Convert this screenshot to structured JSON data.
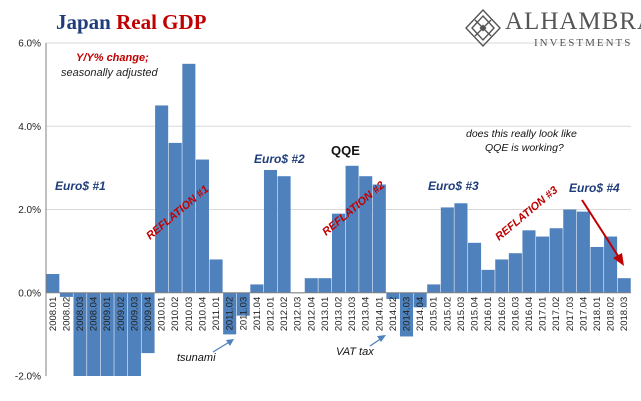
{
  "header": {
    "title_part1": "Japan",
    "title_part2": "Real GDP",
    "logo_name": "ALHAMBRA",
    "logo_sub": "INVESTMENTS"
  },
  "colors": {
    "bar": "#4f81bd",
    "bar_edge": "#3a6ea5",
    "annotation_red": "#c00000",
    "annotation_blue": "#1f3d7a",
    "title_blue": "#1f3d7a",
    "grid": "#d9d9d9"
  },
  "annotations": {
    "yy_change": "Y/Y% change;",
    "seasonally": "seasonally adjusted",
    "euro1": "Euro$ #1",
    "euro2": "Euro$ #2",
    "euro3": "Euro$ #3",
    "euro4": "Euro$ #4",
    "qqe": "QQE",
    "reflation1": "REFLATION #1",
    "reflation2": "REFLATION #2",
    "reflation3": "REFLATION #3",
    "question_line1": "does this really look like",
    "question_line2": "QQE is working?",
    "tsunami": "tsunami",
    "vat_tax": "VAT tax"
  },
  "chart_data": {
    "type": "bar",
    "title": "Japan Real GDP",
    "xlabel": "",
    "ylabel": "",
    "ylim": [
      -2.0,
      6.0
    ],
    "yticks": [
      "6.0%",
      "4.0%",
      "2.0%",
      "0.0%",
      "-2.0%"
    ],
    "grid": true,
    "categories": [
      "2008.01",
      "2008.02",
      "2008.03",
      "2008.04",
      "2009.01",
      "2009.02",
      "2009.03",
      "2009.04",
      "2010.01",
      "2010.02",
      "2010.03",
      "2010.04",
      "2011.01",
      "2011.02",
      "2011.03",
      "2011.04",
      "2012.01",
      "2012.02",
      "2012.03",
      "2012.04",
      "2013.01",
      "2013.02",
      "2013.03",
      "2013.04",
      "2014.01",
      "2014.02",
      "2014.03",
      "2014.04",
      "2015.01",
      "2015.02",
      "2015.03",
      "2015.04",
      "2016.01",
      "2016.02",
      "2016.03",
      "2016.04",
      "2017.01",
      "2017.02",
      "2017.03",
      "2017.04",
      "2018.01",
      "2018.02",
      "2018.03"
    ],
    "x_tick_labels": [
      "2008.01",
      "2008.02",
      "2008.03",
      "2008.04",
      "2009.01",
      "2009.02",
      "2009.03",
      "2009.04",
      "2010.01",
      "2010.02",
      "2010.03",
      "2010.04",
      "2011.01",
      "2011.02",
      "2011.03",
      "2011.04",
      "2012.01",
      "2012.02",
      "2012.03",
      "2012.04",
      "2013.01",
      "2013.02",
      "2013.03",
      "2013.04",
      "2014.01",
      "2014.02",
      "2014.03",
      "2014.04",
      "2015.01",
      "2015.02",
      "2015.03",
      "2015.04",
      "2016.01",
      "2016.02",
      "2016.03",
      "2016.04",
      "2017.01",
      "2017.02",
      "2017.03",
      "2017.04",
      "2018.01",
      "2018.02",
      "2018.03"
    ],
    "values": [
      0.45,
      -0.1,
      -2.0,
      -2.0,
      -2.0,
      -2.0,
      -2.0,
      -1.45,
      4.5,
      3.6,
      5.5,
      3.2,
      0.8,
      -1.0,
      -0.55,
      0.2,
      2.95,
      2.8,
      0.0,
      0.35,
      0.35,
      1.9,
      3.05,
      2.8,
      2.6,
      -0.15,
      -1.05,
      -0.35,
      0.2,
      2.05,
      2.15,
      1.2,
      0.55,
      0.8,
      0.95,
      1.5,
      1.35,
      1.55,
      2.0,
      1.95,
      1.1,
      1.35,
      0.35
    ]
  }
}
